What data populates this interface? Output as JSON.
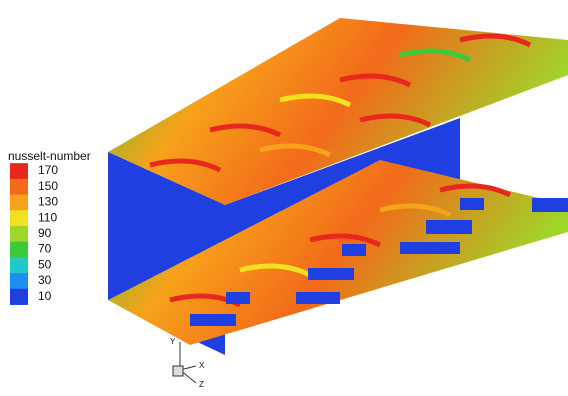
{
  "legend": {
    "title": "nusselt-number",
    "ticks": [
      170,
      150,
      130,
      110,
      90,
      70,
      50,
      30,
      10
    ],
    "colors": [
      "#e8281c",
      "#f26a1a",
      "#f7a21b",
      "#f1e220",
      "#9fd62a",
      "#3dc93a",
      "#20c9c9",
      "#1e8ff0",
      "#1f3fe0"
    ]
  },
  "axes": {
    "labels": [
      "Y",
      "X",
      "Z"
    ]
  }
}
